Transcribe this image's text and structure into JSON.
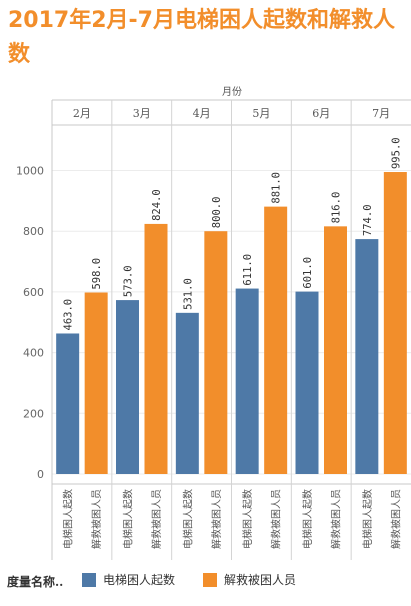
{
  "chart_data": {
    "type": "bar",
    "title": "2017年2月-7月电梯困人起数和解救人数",
    "column_header": "月份",
    "categories": [
      "2月",
      "3月",
      "4月",
      "5月",
      "6月",
      "7月"
    ],
    "ylim": [
      0,
      1100
    ],
    "yticks": [
      0,
      200,
      400,
      600,
      800,
      1000
    ],
    "grid": true,
    "series": [
      {
        "name": "电梯困人起数",
        "color": "#4e79a7",
        "values": [
          463,
          573,
          531,
          611,
          601,
          774
        ],
        "labels": [
          "463.0",
          "573.0",
          "531.0",
          "611.0",
          "601.0",
          "774.0"
        ]
      },
      {
        "name": "解救被困人员",
        "color": "#f28e2b",
        "values": [
          598,
          824,
          800,
          881,
          816,
          995
        ],
        "labels": [
          "598.0",
          "824.0",
          "800.0",
          "881.0",
          "816.0",
          "995.0"
        ]
      }
    ],
    "legend_title": "度量名称..",
    "legend_position": "bottom"
  }
}
